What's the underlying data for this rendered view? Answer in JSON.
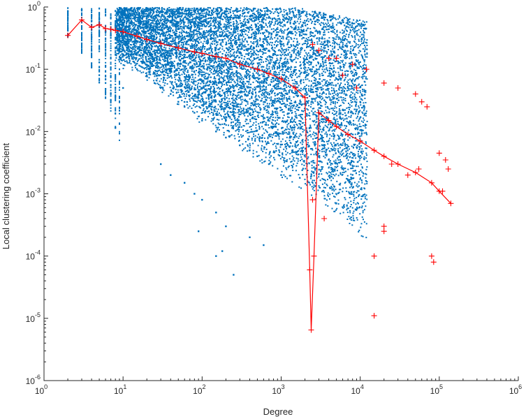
{
  "chart_data": {
    "type": "scatter",
    "title": "",
    "xlabel": "Degree",
    "ylabel": "Local clustering coefficient",
    "xscale": "log",
    "yscale": "log",
    "xlim": [
      1,
      1000000
    ],
    "ylim": [
      1e-06,
      1
    ],
    "x_tick_labels": [
      {
        "base": "10",
        "exp": "0",
        "value": 1
      },
      {
        "base": "10",
        "exp": "1",
        "value": 10
      },
      {
        "base": "10",
        "exp": "2",
        "value": 100
      },
      {
        "base": "10",
        "exp": "3",
        "value": 1000
      },
      {
        "base": "10",
        "exp": "4",
        "value": 10000
      },
      {
        "base": "10",
        "exp": "5",
        "value": 100000
      },
      {
        "base": "10",
        "exp": "6",
        "value": 1000000
      }
    ],
    "y_tick_labels": [
      {
        "base": "10",
        "exp": "-6",
        "value": 1e-06
      },
      {
        "base": "10",
        "exp": "-5",
        "value": 1e-05
      },
      {
        "base": "10",
        "exp": "-4",
        "value": 0.0001
      },
      {
        "base": "10",
        "exp": "-3",
        "value": 0.001
      },
      {
        "base": "10",
        "exp": "-2",
        "value": 0.01
      },
      {
        "base": "10",
        "exp": "-1",
        "value": 0.1
      },
      {
        "base": "10",
        "exp": "0",
        "value": 1
      }
    ],
    "grid": false,
    "legend": "none",
    "colors": {
      "scatter": "#0072bd",
      "trend": "#ff0000",
      "axes": "#262626"
    },
    "series": [
      {
        "style": "scatter",
        "color": "#0072bd",
        "note_points": "cloud of nodes, sample",
        "points": [
          [
            3,
            0.9
          ],
          [
            4,
            0.6
          ],
          [
            5,
            0.55
          ],
          [
            6,
            0.4
          ],
          [
            7,
            0.35
          ],
          [
            8,
            0.5
          ],
          [
            9,
            0.3
          ],
          [
            10,
            0.2
          ],
          [
            10,
            0.05
          ],
          [
            12,
            0.15
          ],
          [
            15,
            0.1
          ],
          [
            20,
            0.08
          ],
          [
            25,
            0.06
          ],
          [
            30,
            0.05
          ],
          [
            40,
            0.04
          ],
          [
            50,
            0.03
          ],
          [
            60,
            0.025
          ],
          [
            80,
            0.02
          ],
          [
            100,
            0.015
          ],
          [
            150,
            0.01
          ],
          [
            200,
            0.008
          ],
          [
            300,
            0.006
          ],
          [
            400,
            0.005
          ],
          [
            500,
            0.004
          ],
          [
            700,
            0.003
          ],
          [
            1000,
            0.002
          ],
          [
            12,
            0.8
          ],
          [
            20,
            0.7
          ],
          [
            30,
            0.6
          ],
          [
            50,
            0.5
          ],
          [
            80,
            0.5
          ],
          [
            120,
            0.4
          ],
          [
            200,
            0.35
          ],
          [
            300,
            0.3
          ],
          [
            500,
            0.25
          ],
          [
            700,
            0.2
          ],
          [
            1000,
            0.15
          ],
          [
            2000,
            0.12
          ],
          [
            3000,
            0.1
          ],
          [
            5000,
            0.07
          ],
          [
            7000,
            0.05
          ],
          [
            10000,
            0.03
          ],
          [
            30,
            0.003
          ],
          [
            40,
            0.002
          ],
          [
            60,
            0.0015
          ],
          [
            80,
            0.001
          ],
          [
            100,
            0.0008
          ],
          [
            150,
            0.0005
          ],
          [
            200,
            0.0003
          ],
          [
            180,
            0.00012
          ],
          [
            150,
            0.0001
          ],
          [
            90,
            0.00025
          ],
          [
            250,
            5e-05
          ],
          [
            400,
            0.0002
          ],
          [
            600,
            0.00015
          ]
        ]
      },
      {
        "style": "line+markers",
        "color": "#ff0000",
        "note_points": "mean clustering coefficient by degree",
        "points": [
          [
            2,
            0.35
          ],
          [
            3,
            0.62
          ],
          [
            4,
            0.47
          ],
          [
            5,
            0.52
          ],
          [
            6,
            0.45
          ],
          [
            7,
            0.44
          ],
          [
            8,
            0.42
          ],
          [
            10,
            0.4
          ],
          [
            15,
            0.34
          ],
          [
            20,
            0.3
          ],
          [
            30,
            0.26
          ],
          [
            50,
            0.22
          ],
          [
            80,
            0.19
          ],
          [
            100,
            0.18
          ],
          [
            150,
            0.16
          ],
          [
            200,
            0.15
          ],
          [
            300,
            0.12
          ],
          [
            500,
            0.1
          ],
          [
            700,
            0.085
          ],
          [
            1000,
            0.07
          ],
          [
            1500,
            0.05
          ],
          [
            2000,
            0.035
          ],
          [
            2300,
            6e-05
          ],
          [
            2400,
            6.5e-06
          ],
          [
            2600,
            0.0001
          ],
          [
            3000,
            0.02
          ],
          [
            4000,
            0.015
          ],
          [
            5000,
            0.012
          ],
          [
            7000,
            0.009
          ],
          [
            10000,
            0.007
          ],
          [
            15000,
            0.005
          ],
          [
            20000,
            0.004
          ],
          [
            30000,
            0.003
          ],
          [
            50000,
            0.0022
          ],
          [
            80000,
            0.0015
          ],
          [
            100000,
            0.0011
          ],
          [
            140000,
            0.0007
          ]
        ]
      },
      {
        "style": "markers",
        "color": "#ff0000",
        "note_points": "outlier plus markers",
        "points": [
          [
            2500,
            0.25
          ],
          [
            3000,
            0.2
          ],
          [
            5000,
            0.15
          ],
          [
            8000,
            0.12
          ],
          [
            12000,
            0.1
          ],
          [
            20000,
            0.06
          ],
          [
            30000,
            0.05
          ],
          [
            50000,
            0.04
          ],
          [
            60000,
            0.03
          ],
          [
            70000,
            0.025
          ],
          [
            100000,
            0.0045
          ],
          [
            120000,
            0.0035
          ],
          [
            130000,
            0.0025
          ],
          [
            110000,
            0.0011
          ],
          [
            20000,
            0.0003
          ],
          [
            20000,
            0.00025
          ],
          [
            15000,
            0.0001
          ],
          [
            80000,
            0.0001
          ],
          [
            85000,
            8e-05
          ],
          [
            15000,
            1.1e-05
          ],
          [
            3500,
            0.0004
          ],
          [
            2500,
            0.0008
          ],
          [
            4000,
            0.15
          ],
          [
            6000,
            0.08
          ],
          [
            9000,
            0.05
          ],
          [
            25000,
            0.003
          ],
          [
            40000,
            0.002
          ],
          [
            55000,
            0.0025
          ]
        ]
      }
    ]
  }
}
